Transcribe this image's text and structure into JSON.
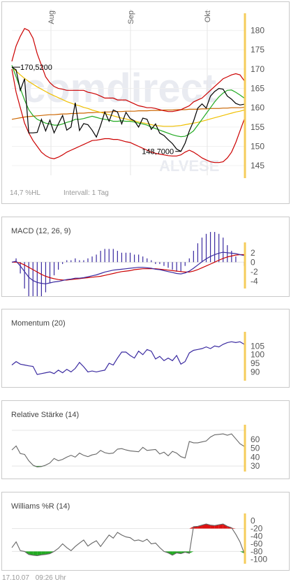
{
  "colors": {
    "accent_axis": "#f5cc5a",
    "line_price": "#000000",
    "bollinger": "#cc0000",
    "ma_yellow": "#f0c000",
    "ma_green": "#22aa22",
    "ma_orange": "#cc6600",
    "macd_line": "#3a2aa0",
    "signal_line": "#cc0000",
    "hist_bar": "#3a2aa0",
    "osc_line": "#666666",
    "momentum_line": "#3a2aa0",
    "zone_green": "#22aa22",
    "zone_red": "#dd1111"
  },
  "watermark": {
    "brand": "comdirect",
    "sub": "ALVESE"
  },
  "main": {
    "price_labels": {
      "high": "170,5200",
      "low": "148,7000"
    },
    "info_left": "14,7 %HL",
    "info_right": "Intervall: 1 Tag"
  },
  "footer": {
    "date": "17.10.07",
    "time": "09:26 Uhr"
  },
  "chart_data": [
    {
      "type": "line",
      "title": "",
      "month_labels": [
        "Aug",
        "Sep",
        "Okt"
      ],
      "yticks": [
        145,
        150,
        155,
        160,
        165,
        170,
        175,
        180
      ],
      "ylim": [
        142.5,
        183
      ],
      "series": [
        {
          "key": "price",
          "values": [
            170.5,
            169.8,
            164.5,
            167.5,
            153.5,
            153.5,
            153.6,
            157.0,
            154.0,
            156.8,
            153.5,
            155.8,
            158.0,
            154.2,
            155.0,
            161.3,
            154.1,
            155.9,
            155.6,
            154.2,
            152.4,
            155.4,
            158.9,
            156.5,
            159.4,
            158.9,
            155.8,
            158.8,
            157.2,
            156.6,
            155.0,
            157.3,
            157.0,
            154.4,
            155.8,
            153.4,
            152.8,
            151.7,
            150.7,
            149.3,
            148.7,
            150.8,
            154.0,
            156.5,
            159.9,
            161.0,
            159.9,
            163.0,
            164.2,
            165.0,
            164.8,
            163.0,
            162.2,
            161.1,
            160.7,
            160.9
          ]
        },
        {
          "key": "bollinger_upper",
          "values": [
            172.0,
            176.0,
            178.5,
            180.5,
            180.0,
            178.0,
            174.0,
            171.0,
            168.0,
            166.5,
            165.5,
            165.0,
            164.8,
            164.5,
            164.5,
            164.5,
            164.5,
            164.5,
            164.0,
            163.8,
            163.5,
            163.0,
            162.5,
            162.5,
            162.5,
            162.0,
            162.0,
            162.0,
            161.5,
            161.0,
            160.5,
            160.3,
            160.0,
            160.0,
            159.8,
            159.5,
            159.2,
            159.0,
            159.0,
            159.2,
            159.5,
            160.0,
            160.5,
            161.5,
            162.0,
            162.5,
            163.5,
            164.5,
            165.5,
            166.5,
            167.5,
            168.0,
            168.5,
            168.8,
            168.5,
            167.0
          ]
        },
        {
          "key": "bollinger_lower",
          "values": [
            170.0,
            164.0,
            160.0,
            156.0,
            153.5,
            151.5,
            150.0,
            148.5,
            147.6,
            147.0,
            146.8,
            147.2,
            147.8,
            148.5,
            149.0,
            149.5,
            150.0,
            150.5,
            151.0,
            151.5,
            151.6,
            151.8,
            152.0,
            152.0,
            151.8,
            151.8,
            151.5,
            151.2,
            151.0,
            150.5,
            150.0,
            149.5,
            149.0,
            148.5,
            148.2,
            148.0,
            147.8,
            147.6,
            147.5,
            147.5,
            147.8,
            148.5,
            149.0,
            148.5,
            147.8,
            147.0,
            146.5,
            146.0,
            145.8,
            145.8,
            146.0,
            147.0,
            148.5,
            151.0,
            154.0,
            157.0
          ]
        },
        {
          "key": "ma_green",
          "values": [
            171.0,
            168.0,
            165.0,
            162.0,
            159.5,
            158.0,
            157.0,
            156.5,
            156.0,
            155.8,
            155.5,
            155.5,
            155.8,
            156.2,
            156.5,
            157.0,
            157.0,
            157.2,
            157.5,
            157.8,
            157.5,
            157.2,
            157.0,
            156.8,
            156.5,
            156.5,
            156.6,
            156.5,
            156.5,
            156.3,
            156.0,
            155.8,
            155.5,
            155.0,
            154.6,
            154.2,
            153.8,
            153.4,
            153.0,
            152.7,
            152.5,
            152.6,
            153.2,
            154.0,
            155.5,
            157.0,
            158.5,
            160.0,
            161.5,
            162.8,
            163.8,
            164.5,
            164.6,
            164.0,
            163.3,
            162.5
          ]
        },
        {
          "key": "ma_yellow",
          "values": [
            170.5,
            169.5,
            168.5,
            167.6,
            166.8,
            166.1,
            165.4,
            164.8,
            164.2,
            163.6,
            163.1,
            162.6,
            162.1,
            161.6,
            161.2,
            160.8,
            160.5,
            160.1,
            159.8,
            159.4,
            159.1,
            158.8,
            158.5,
            158.2,
            157.9,
            157.6,
            157.3,
            157.1,
            156.8,
            156.6,
            156.3,
            156.1,
            155.9,
            155.6,
            155.4,
            155.3,
            155.2,
            155.2,
            155.2,
            155.3,
            155.4,
            155.6,
            155.8,
            156.0,
            156.2,
            156.5,
            156.8,
            157.1,
            157.4,
            157.7,
            158.0,
            158.3,
            158.6,
            158.9,
            159.1,
            159.4
          ]
        },
        {
          "key": "ma_orange",
          "values": [
            157.0,
            157.2,
            157.4,
            157.6,
            157.7,
            157.8,
            157.9,
            158.0,
            158.1,
            158.2,
            158.2,
            158.3,
            158.4,
            158.4,
            158.5,
            158.5,
            158.6,
            158.6,
            158.7,
            158.7,
            158.8,
            158.8,
            158.9,
            158.9,
            159.0,
            159.0,
            159.0,
            159.1,
            159.1,
            159.1,
            159.2,
            159.2,
            159.2,
            159.3,
            159.3,
            159.3,
            159.4,
            159.4,
            159.4,
            159.5,
            159.5,
            159.5,
            159.6,
            159.6,
            159.6,
            159.7,
            159.7,
            159.8,
            159.8,
            159.8,
            159.9,
            159.9,
            160.0,
            160.0,
            160.0,
            160.1
          ]
        }
      ]
    },
    {
      "type": "line",
      "title": "MACD (12, 26, 9)",
      "yticks": [
        2,
        0,
        -2,
        -4
      ],
      "ylim": [
        -5,
        3
      ],
      "series": [
        {
          "key": "macd",
          "values": [
            0.0,
            0.2,
            -0.8,
            -2.0,
            -3.2,
            -3.9,
            -4.3,
            -4.5,
            -4.6,
            -4.4,
            -4.2,
            -4.1,
            -3.9,
            -3.7,
            -3.6,
            -3.4,
            -3.4,
            -3.3,
            -3.1,
            -2.9,
            -2.7,
            -2.4,
            -2.1,
            -1.9,
            -1.7,
            -1.6,
            -1.5,
            -1.4,
            -1.3,
            -1.2,
            -1.1,
            -1.1,
            -1.2,
            -1.3,
            -1.5,
            -1.6,
            -1.8,
            -2.0,
            -2.2,
            -2.4,
            -2.5,
            -2.3,
            -1.9,
            -1.3,
            -0.6,
            0.1,
            0.7,
            1.2,
            1.6,
            1.9,
            2.1,
            2.0,
            1.9,
            1.8,
            1.6,
            1.4
          ]
        },
        {
          "key": "signal",
          "values": [
            0.0,
            0.0,
            -0.2,
            -0.6,
            -1.1,
            -1.6,
            -2.1,
            -2.6,
            -3.0,
            -3.3,
            -3.5,
            -3.7,
            -3.8,
            -3.8,
            -3.7,
            -3.6,
            -3.5,
            -3.4,
            -3.3,
            -3.2,
            -3.1,
            -3.0,
            -2.8,
            -2.6,
            -2.4,
            -2.2,
            -2.0,
            -1.9,
            -1.8,
            -1.6,
            -1.5,
            -1.4,
            -1.4,
            -1.4,
            -1.4,
            -1.5,
            -1.6,
            -1.7,
            -1.8,
            -1.9,
            -2.0,
            -2.1,
            -2.1,
            -1.9,
            -1.6,
            -1.2,
            -0.8,
            -0.4,
            0.0,
            0.4,
            0.8,
            1.1,
            1.3,
            1.5,
            1.6,
            1.6
          ]
        }
      ]
    },
    {
      "type": "line",
      "title": "Momentum (20)",
      "yticks": [
        105,
        100,
        95,
        90
      ],
      "ylim": [
        86.5,
        110
      ],
      "series": [
        {
          "key": "momentum",
          "values": [
            94.0,
            96.0,
            94.5,
            94.0,
            93.5,
            93.2,
            88.5,
            89.0,
            89.5,
            90.0,
            89.0,
            91.0,
            89.5,
            91.5,
            90.0,
            92.0,
            95.5,
            93.0,
            90.0,
            90.5,
            90.0,
            90.5,
            91.0,
            95.0,
            94.0,
            98.0,
            101.5,
            101.5,
            99.5,
            98.0,
            102.0,
            100.0,
            103.0,
            102.0,
            97.5,
            99.0,
            96.5,
            98.0,
            96.5,
            99.5,
            94.5,
            96.0,
            101.0,
            102.5,
            103.0,
            103.5,
            104.5,
            103.5,
            105.0,
            104.5,
            106.0,
            107.0,
            107.5,
            107.0,
            107.5,
            106.0
          ]
        }
      ]
    },
    {
      "type": "line",
      "title": "Relative Stärke (14)",
      "yticks": [
        60,
        50,
        40,
        30
      ],
      "ylim": [
        27,
        70
      ],
      "series": [
        {
          "key": "rsi",
          "values": [
            48.0,
            52.5,
            44.0,
            43.0,
            36.0,
            31.0,
            29.0,
            29.5,
            31.0,
            33.5,
            38.5,
            36.0,
            37.5,
            40.0,
            42.0,
            40.0,
            44.5,
            42.0,
            40.5,
            42.5,
            43.5,
            47.5,
            45.0,
            44.0,
            44.5,
            49.0,
            49.5,
            48.0,
            47.0,
            46.5,
            46.0,
            51.0,
            47.5,
            48.0,
            48.5,
            43.5,
            45.5,
            41.5,
            46.5,
            44.5,
            40.5,
            39.0,
            57.5,
            56.0,
            56.0,
            57.0,
            58.0,
            62.5,
            65.0,
            65.5,
            66.0,
            64.5,
            66.0,
            60.5,
            55.0,
            52.0
          ]
        }
      ]
    },
    {
      "type": "line",
      "title": "Williams %R (14)",
      "yticks": [
        0,
        -20,
        -40,
        -60,
        -80,
        -100
      ],
      "ylim": [
        -105,
        5
      ],
      "series": [
        {
          "key": "williams",
          "values": [
            -70.0,
            -55.0,
            -78.0,
            -80.0,
            -88.0,
            -90.0,
            -91.0,
            -89.0,
            -88.0,
            -86.0,
            -80.0,
            -72.0,
            -60.0,
            -70.0,
            -78.0,
            -67.0,
            -58.0,
            -50.0,
            -66.0,
            -58.0,
            -52.0,
            -67.0,
            -52.0,
            -37.0,
            -45.0,
            -30.0,
            -37.0,
            -42.0,
            -44.0,
            -52.0,
            -50.0,
            -54.0,
            -48.0,
            -60.0,
            -58.0,
            -70.0,
            -80.0,
            -84.0,
            -90.0,
            -84.0,
            -86.0,
            -82.0,
            -85.0,
            -15.0,
            -14.0,
            -11.0,
            -8.0,
            -11.0,
            -12.0,
            -10.0,
            -8.0,
            -14.0,
            -18.0,
            -35.0,
            -55.0,
            -85.0
          ]
        }
      ]
    }
  ]
}
